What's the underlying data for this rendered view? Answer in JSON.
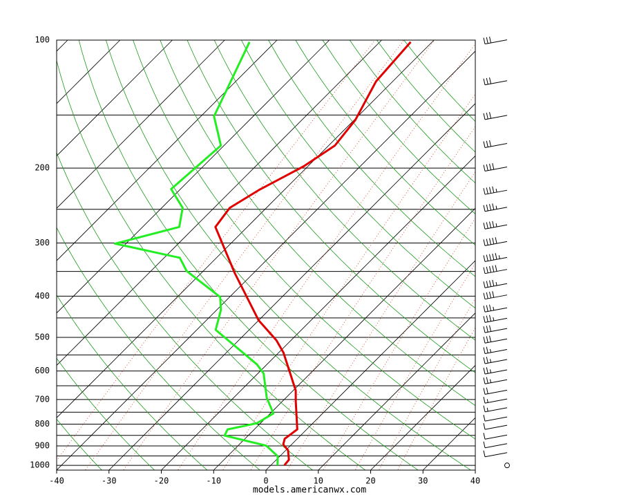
{
  "chart_data": {
    "type": "skewt",
    "footer": "models.americanwx.com",
    "xlim": [
      -40,
      40
    ],
    "xticks": [
      -40,
      -30,
      -20,
      -10,
      0,
      10,
      20,
      30,
      40
    ],
    "ylim": [
      1026,
      100
    ],
    "yticks": [
      100,
      200,
      300,
      400,
      500,
      600,
      700,
      800,
      900,
      1000
    ],
    "log_y": true,
    "skew_angle": 45,
    "isobars": [
      150,
      250,
      350,
      450,
      550,
      650,
      750,
      850,
      950
    ],
    "isotherms": [
      -120,
      -110,
      -100,
      -90,
      -80,
      -70,
      -60,
      -50,
      -40,
      -30,
      -20,
      -10,
      0,
      10,
      20,
      30,
      40
    ],
    "dry_adiabats": [
      240,
      250,
      260,
      270,
      280,
      290,
      300,
      310,
      320,
      330,
      340,
      350,
      360,
      370,
      380,
      390,
      400,
      410,
      420
    ],
    "mixing_ratios": [
      0.1,
      0.2,
      0.4,
      1,
      2,
      3,
      5,
      8,
      12,
      16,
      20
    ],
    "series": [
      {
        "color": "#e00000",
        "pressure": [
          1000,
          970,
          921,
          893,
          866,
          823,
          706,
          667,
          543,
          508,
          456,
          353,
          275,
          248,
          225,
          198,
          177,
          154,
          125,
          101
        ],
        "values": [
          2.6,
          2.4,
          0.4,
          -1.6,
          -2.4,
          -1.8,
          -7.5,
          -9.5,
          -19.1,
          -22.8,
          -30.0,
          -43.6,
          -56.1,
          -57.0,
          -54.8,
          -50.8,
          -48.8,
          -49.8,
          -53.2,
          -54.1
        ]
      },
      {
        "color": "#22ee22",
        "pressure": [
          1000,
          952,
          899,
          851,
          823,
          796,
          755,
          693,
          608,
          579,
          480,
          431,
          402,
          349,
          325,
          301,
          275,
          248,
          224,
          177,
          151,
          131,
          101
        ],
        "values": [
          1.3,
          -0.4,
          -4.6,
          -14.5,
          -15.1,
          -10.7,
          -9.4,
          -13.7,
          -18.9,
          -21.9,
          -36.4,
          -39.2,
          -41.8,
          -53.2,
          -57.0,
          -72.1,
          -63.0,
          -66.0,
          -71.8,
          -70.6,
          -77.5,
          -80.1,
          -84.9
        ]
      }
    ],
    "wind_pressure": [
      101,
      126,
      152,
      177,
      201,
      228,
      250,
      275,
      301,
      328,
      350,
      378,
      402,
      431,
      456,
      482,
      510,
      540,
      570,
      603,
      636,
      673,
      706,
      740,
      778,
      814,
      858,
      899,
      944,
      1000
    ],
    "wind_speed": [
      30,
      30,
      30,
      30,
      40,
      45,
      45,
      45,
      50,
      55,
      50,
      45,
      40,
      35,
      35,
      30,
      30,
      25,
      25,
      25,
      25,
      20,
      15,
      15,
      10,
      10,
      10,
      10,
      10,
      0
    ]
  }
}
